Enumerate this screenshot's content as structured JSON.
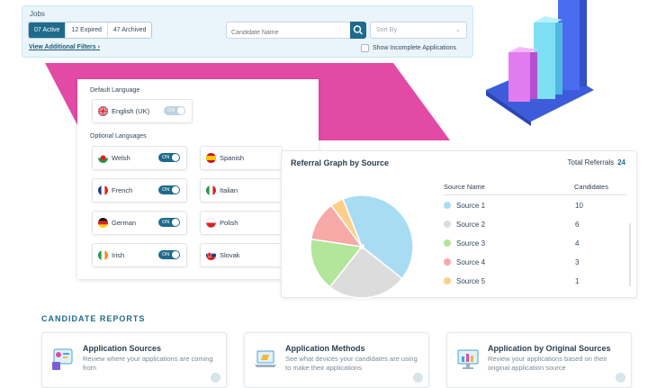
{
  "jobs": {
    "title": "Jobs",
    "segments": [
      "07 Active",
      "12 Expired",
      "47 Archived"
    ],
    "filters_link": "View Additional Filters",
    "candidate_placeholder": "Candidate Name",
    "sort_placeholder": "Sort By",
    "incomplete_label": "Show Incomplete Applications"
  },
  "languages": {
    "default_header": "Default Language",
    "default": {
      "name": "English (UK)",
      "toggle": "ON"
    },
    "optional_header": "Optional Languages",
    "optional": [
      {
        "name": "Welsh",
        "toggle": "ON"
      },
      {
        "name": "Spanish",
        "toggle": ""
      },
      {
        "name": "French",
        "toggle": "ON"
      },
      {
        "name": "Italian",
        "toggle": ""
      },
      {
        "name": "German",
        "toggle": "ON"
      },
      {
        "name": "Polish",
        "toggle": ""
      },
      {
        "name": "Irish",
        "toggle": "ON"
      },
      {
        "name": "Slovak",
        "toggle": ""
      }
    ]
  },
  "referral": {
    "title": "Referral Graph by Source",
    "total_label": "Total Referrals",
    "total_value": "24",
    "col_source": "Source Name",
    "col_candidates": "Candidates",
    "sources": [
      {
        "name": "Source 1",
        "count": "10",
        "color": "#a8dcf2"
      },
      {
        "name": "Source 2",
        "count": "6",
        "color": "#dcdcdc"
      },
      {
        "name": "Source 3",
        "count": "4",
        "color": "#b3e59a"
      },
      {
        "name": "Source 4",
        "count": "3",
        "color": "#f7a9a8"
      },
      {
        "name": "Source 5",
        "count": "1",
        "color": "#fcd08a"
      }
    ]
  },
  "reports": {
    "title": "CANDIDATE REPORTS",
    "cards": [
      {
        "title": "Application Sources",
        "desc": "Review where your applications are coming from"
      },
      {
        "title": "Application Methods",
        "desc": "See what devices your candidates are using to make their applications"
      },
      {
        "title": "Application by Original Sources",
        "desc": "Review your applications based on their original application source"
      }
    ]
  }
}
